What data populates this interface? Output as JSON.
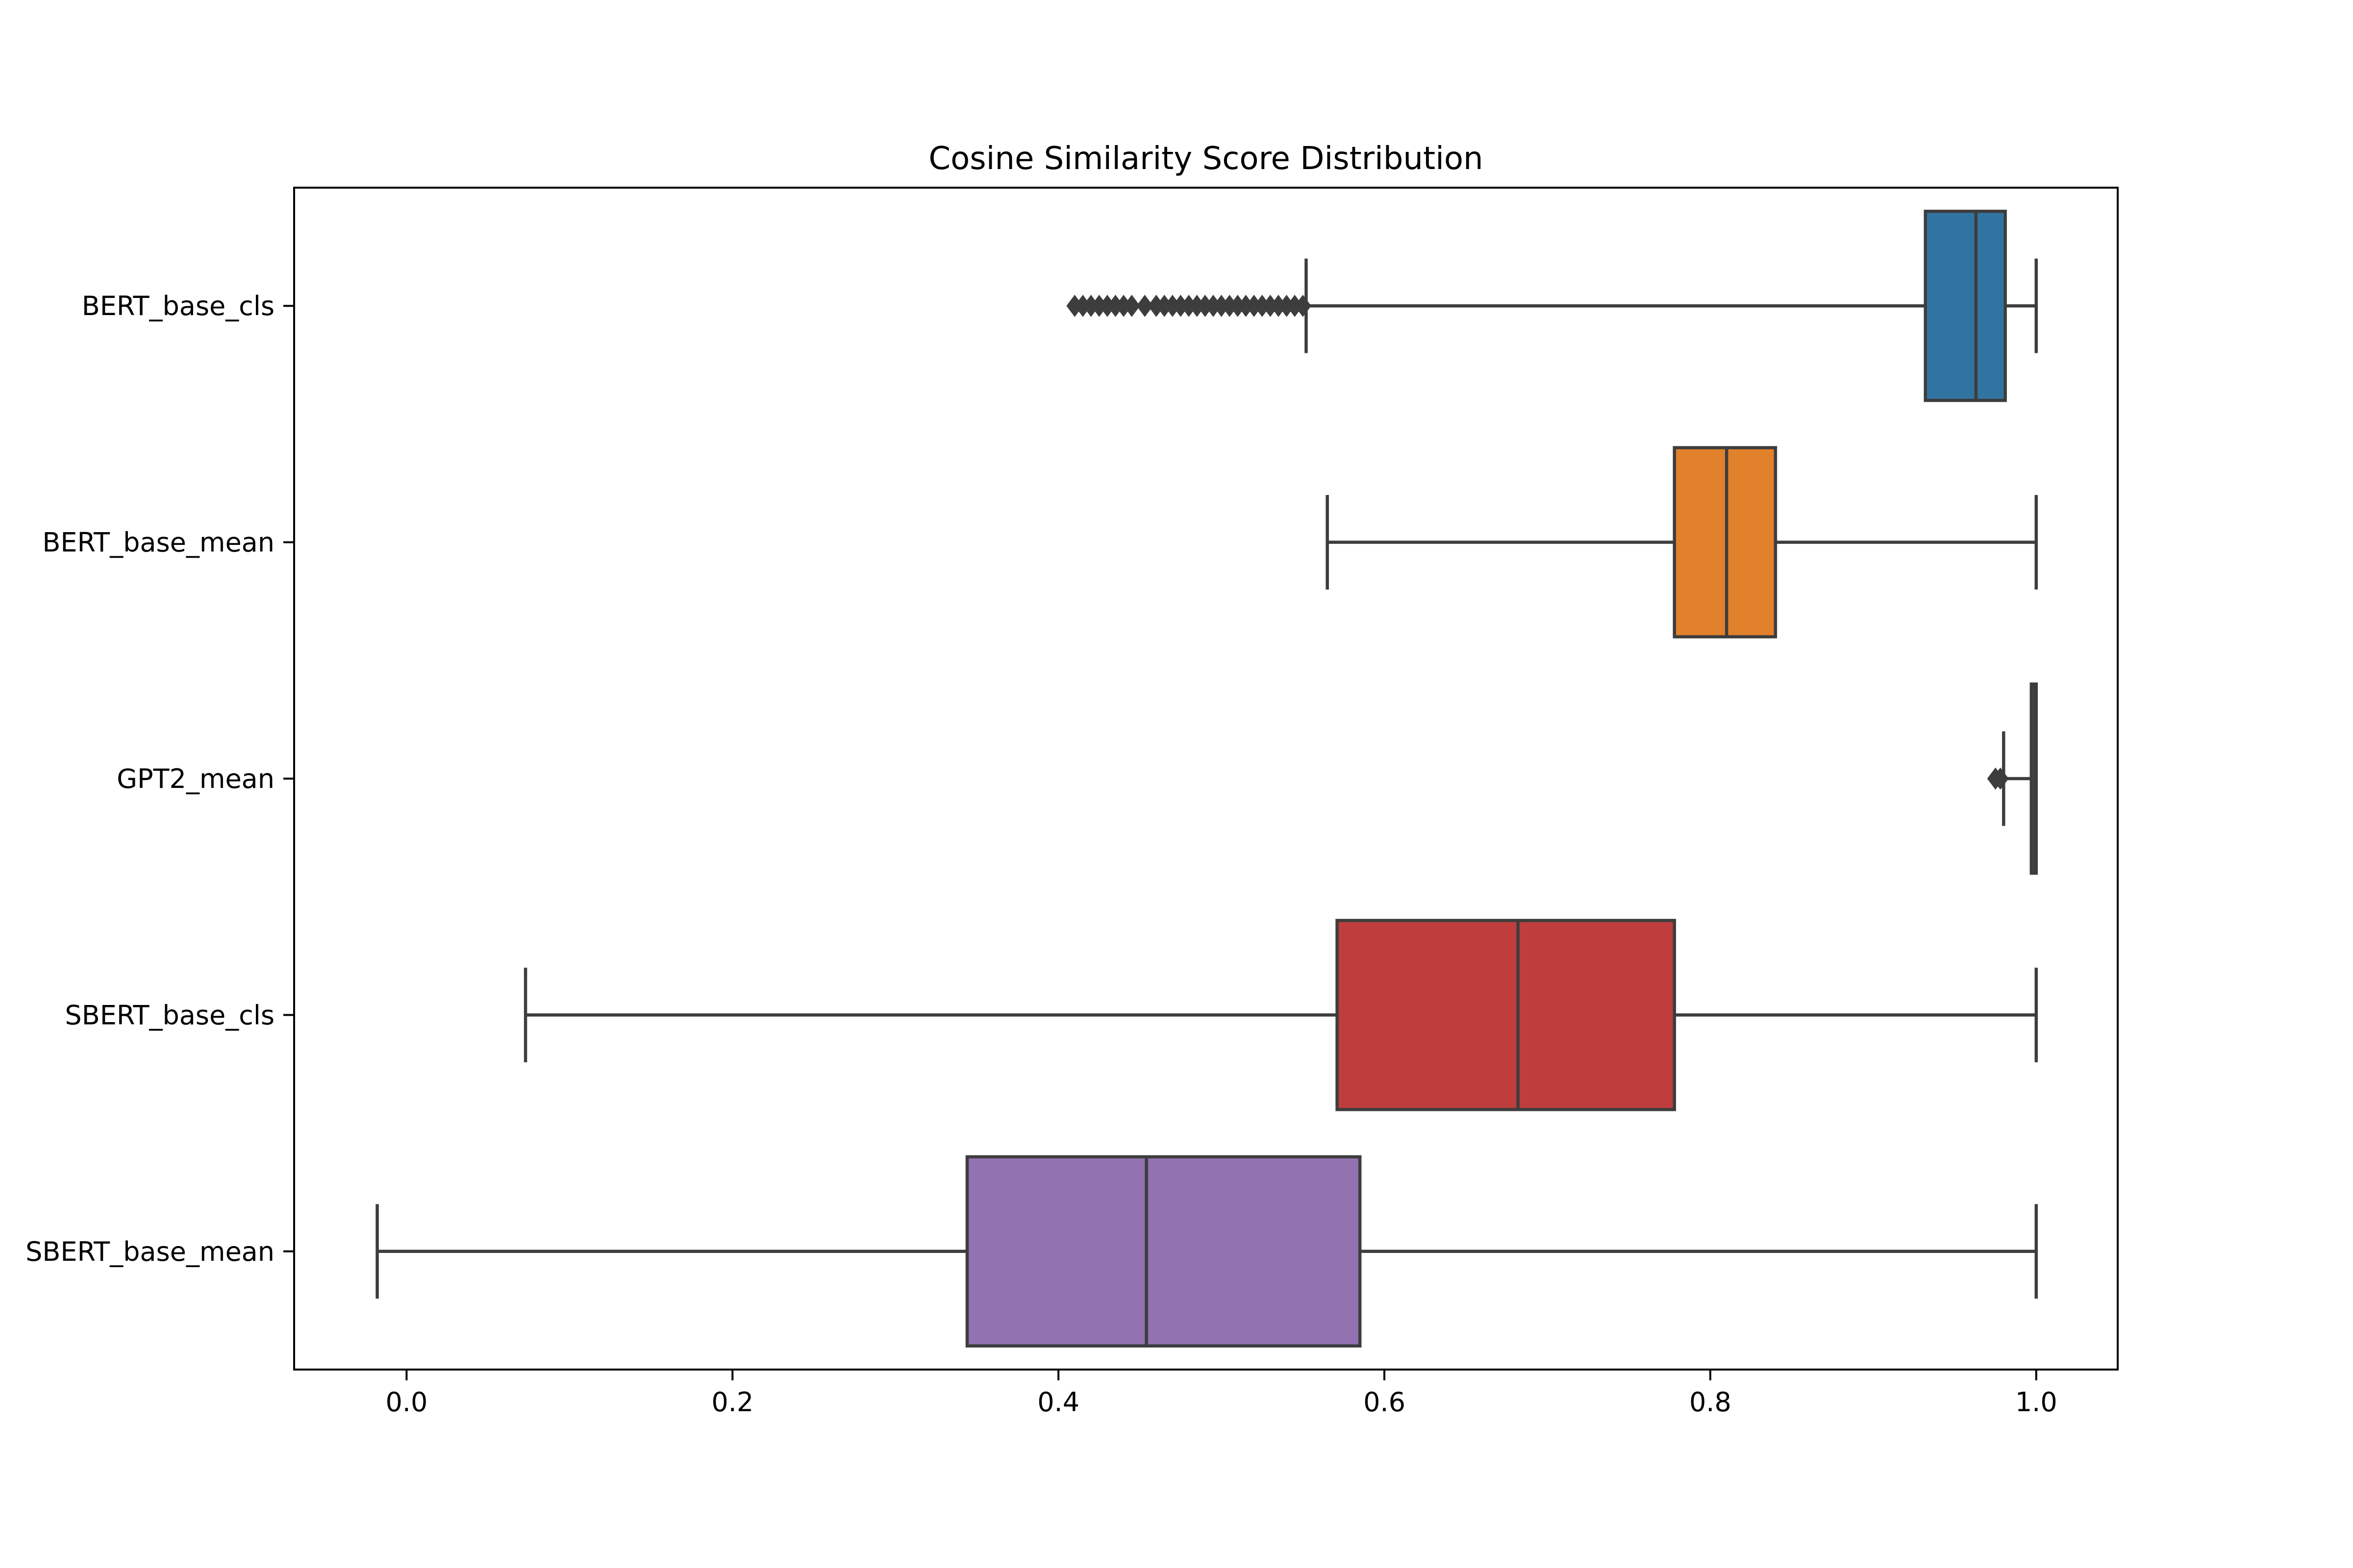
{
  "chart_data": {
    "type": "boxplot",
    "orientation": "horizontal",
    "title": "Cosine Similarity Score Distribution",
    "xlabel": "",
    "ylabel": "",
    "xlim": [
      -0.069,
      1.05
    ],
    "xticks": [
      0.0,
      0.2,
      0.4,
      0.6,
      0.8,
      1.0
    ],
    "xtick_labels": [
      "0.0",
      "0.2",
      "0.4",
      "0.6",
      "0.8",
      "1.0"
    ],
    "grid": false,
    "series": [
      {
        "name": "BERT_base_cls",
        "color": "#3274a1",
        "whisker_low": 0.552,
        "q1": 0.932,
        "median": 0.963,
        "q3": 0.981,
        "whisker_high": 1.0,
        "outliers": [
          0.41,
          0.415,
          0.42,
          0.425,
          0.43,
          0.435,
          0.44,
          0.445,
          0.453,
          0.46,
          0.465,
          0.47,
          0.475,
          0.48,
          0.485,
          0.49,
          0.495,
          0.5,
          0.505,
          0.51,
          0.515,
          0.52,
          0.525,
          0.53,
          0.535,
          0.54,
          0.545,
          0.55
        ]
      },
      {
        "name": "BERT_base_mean",
        "color": "#e1812c",
        "whisker_low": 0.565,
        "q1": 0.778,
        "median": 0.81,
        "q3": 0.84,
        "whisker_high": 1.0,
        "outliers": []
      },
      {
        "name": "GPT2_mean",
        "color": "#3a923a",
        "whisker_low": 0.98,
        "q1": 0.997,
        "median": 0.999,
        "q3": 1.0,
        "whisker_high": 1.0,
        "outliers": [
          0.975,
          0.978
        ]
      },
      {
        "name": "SBERT_base_cls",
        "color": "#c03d3e",
        "whisker_low": 0.073,
        "q1": 0.571,
        "median": 0.682,
        "q3": 0.778,
        "whisker_high": 1.0,
        "outliers": []
      },
      {
        "name": "SBERT_base_mean",
        "color": "#9372b2",
        "whisker_low": -0.018,
        "q1": 0.344,
        "median": 0.454,
        "q3": 0.585,
        "whisker_high": 1.0,
        "outliers": []
      }
    ]
  }
}
